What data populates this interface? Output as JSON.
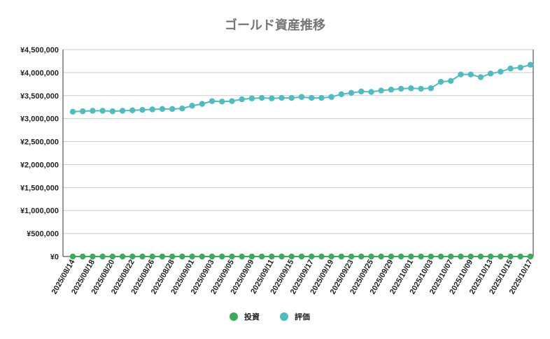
{
  "chart_data": {
    "type": "line",
    "title": "ゴールド資産推移",
    "xlabel": "",
    "ylabel": "",
    "ylim": [
      0,
      4500000
    ],
    "yticks": [
      0,
      500000,
      1000000,
      1500000,
      2000000,
      2500000,
      3000000,
      3500000,
      4000000,
      4500000
    ],
    "ytick_labels": [
      "¥0",
      "¥500,000",
      "¥1,000,000",
      "¥1,500,000",
      "¥2,000,000",
      "¥2,500,000",
      "¥3,000,000",
      "¥3,500,000",
      "¥4,000,000",
      "¥4,500,000"
    ],
    "grid": true,
    "legend_position": "bottom",
    "x": [
      "2025/08/14",
      "2025/08/15",
      "2025/08/18",
      "2025/08/19",
      "2025/08/20",
      "2025/08/21",
      "2025/08/22",
      "2025/08/25",
      "2025/08/26",
      "2025/08/27",
      "2025/08/28",
      "2025/08/29",
      "2025/09/01",
      "2025/09/02",
      "2025/09/03",
      "2025/09/04",
      "2025/09/05",
      "2025/09/08",
      "2025/09/09",
      "2025/09/10",
      "2025/09/11",
      "2025/09/12",
      "2025/09/15",
      "2025/09/16",
      "2025/09/17",
      "2025/09/18",
      "2025/09/19",
      "2025/09/22",
      "2025/09/23",
      "2025/09/24",
      "2025/09/25",
      "2025/09/26",
      "2025/09/29",
      "2025/09/30",
      "2025/10/01",
      "2025/10/02",
      "2025/10/03",
      "2025/10/06",
      "2025/10/07",
      "2025/10/08",
      "2025/10/09",
      "2025/10/10",
      "2025/10/13",
      "2025/10/14",
      "2025/10/15",
      "2025/10/16",
      "2025/10/17"
    ],
    "x_tick_labels": [
      "2025/08/14",
      "2025/08/18",
      "2025/08/20",
      "2025/08/22",
      "2025/08/26",
      "2025/08/28",
      "2025/09/01",
      "2025/09/03",
      "2025/09/05",
      "2025/09/09",
      "2025/09/11",
      "2025/09/15",
      "2025/09/17",
      "2025/09/19",
      "2025/09/23",
      "2025/09/25",
      "2025/09/29",
      "2025/10/01",
      "2025/10/03",
      "2025/10/07",
      "2025/10/09",
      "2025/10/13",
      "2025/10/15",
      "2025/10/17"
    ],
    "series": [
      {
        "name": "投資",
        "color": "#3aaa5c",
        "values": [
          0,
          0,
          0,
          0,
          0,
          0,
          0,
          0,
          0,
          0,
          0,
          0,
          0,
          0,
          0,
          0,
          0,
          0,
          0,
          0,
          0,
          0,
          0,
          0,
          0,
          0,
          0,
          0,
          0,
          0,
          0,
          0,
          0,
          0,
          0,
          0,
          0,
          0,
          0,
          0,
          0,
          0,
          0,
          0,
          0,
          0,
          0
        ]
      },
      {
        "name": "評価",
        "color": "#4dbdbf",
        "values": [
          3150000,
          3160000,
          3170000,
          3170000,
          3160000,
          3170000,
          3180000,
          3190000,
          3200000,
          3210000,
          3210000,
          3220000,
          3280000,
          3320000,
          3380000,
          3370000,
          3380000,
          3420000,
          3440000,
          3450000,
          3440000,
          3450000,
          3450000,
          3470000,
          3450000,
          3450000,
          3470000,
          3530000,
          3560000,
          3590000,
          3580000,
          3610000,
          3630000,
          3650000,
          3660000,
          3650000,
          3660000,
          3800000,
          3820000,
          3960000,
          3960000,
          3900000,
          3980000,
          4020000,
          4090000,
          4110000,
          4170000
        ]
      }
    ]
  }
}
